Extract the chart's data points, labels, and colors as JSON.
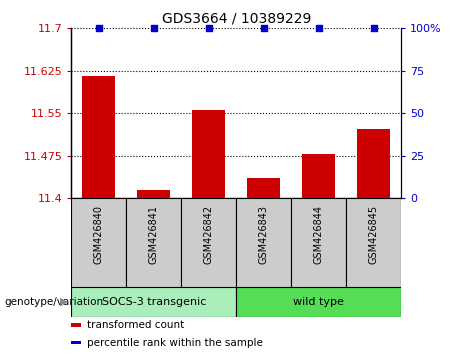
{
  "title": "GDS3664 / 10389229",
  "samples": [
    "GSM426840",
    "GSM426841",
    "GSM426842",
    "GSM426843",
    "GSM426844",
    "GSM426845"
  ],
  "bar_values": [
    11.615,
    11.415,
    11.555,
    11.435,
    11.478,
    11.523
  ],
  "percentile_values": [
    100,
    100,
    100,
    100,
    100,
    100
  ],
  "ymin": 11.4,
  "ymax": 11.7,
  "y_ticks": [
    11.4,
    11.475,
    11.55,
    11.625,
    11.7
  ],
  "y_tick_labels": [
    "11.4",
    "11.475",
    "11.55",
    "11.625",
    "11.7"
  ],
  "y2_ticks": [
    0,
    25,
    50,
    75,
    100
  ],
  "y2_tick_labels": [
    "0",
    "25",
    "50",
    "75",
    "100%"
  ],
  "bar_color": "#cc0000",
  "percentile_color": "#0000cc",
  "group0_label": "SOCS-3 transgenic",
  "group0_color": "#aaeebb",
  "group0_samples": [
    0,
    1,
    2
  ],
  "group1_label": "wild type",
  "group1_color": "#55dd55",
  "group1_samples": [
    3,
    4,
    5
  ],
  "legend_items": [
    {
      "color": "#cc0000",
      "label": "transformed count"
    },
    {
      "color": "#0000cc",
      "label": "percentile rank within the sample"
    }
  ],
  "xlabel_left": "genotype/variation",
  "sample_box_color": "#cccccc",
  "title_fontsize": 10,
  "tick_fontsize": 8,
  "label_fontsize": 8
}
